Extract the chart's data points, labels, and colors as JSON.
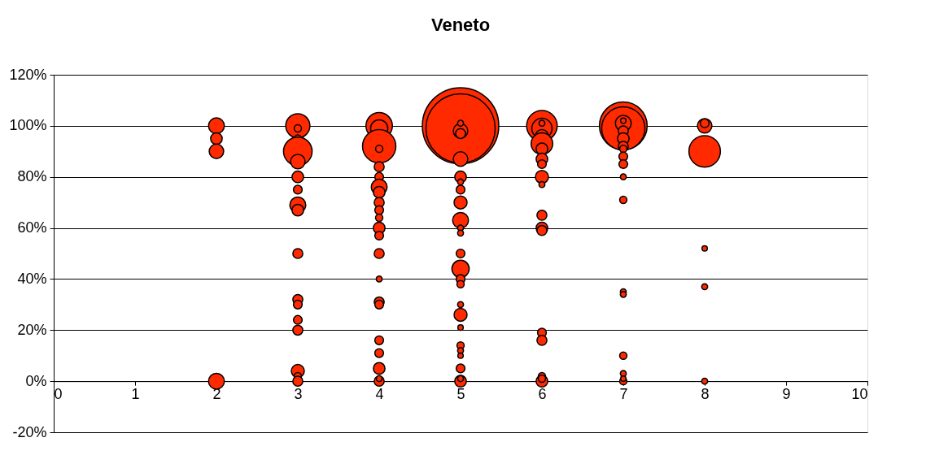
{
  "chart_data": {
    "type": "bubble",
    "title": "Veneto",
    "series": [
      {
        "color": "#ff2a00",
        "x": [
          2,
          2,
          2,
          2,
          3,
          3,
          3,
          3,
          3,
          3,
          3,
          3,
          3,
          3,
          3,
          3,
          3,
          3,
          3,
          3,
          3,
          4,
          4,
          4,
          4,
          4,
          4,
          4,
          4,
          4,
          4,
          4,
          4,
          4,
          4,
          4,
          4,
          4,
          4,
          4,
          4,
          4,
          4,
          5,
          5,
          5,
          5,
          5,
          5,
          5,
          5,
          5,
          5,
          5,
          5,
          5,
          5,
          5,
          5,
          5,
          5,
          5,
          5,
          5,
          5,
          5,
          5,
          5,
          5,
          6,
          6,
          6,
          6,
          6,
          6,
          6,
          6,
          6,
          6,
          6,
          6,
          6,
          6,
          6,
          6,
          6,
          6,
          7,
          7,
          7,
          7,
          7,
          7,
          7,
          7,
          7,
          7,
          7,
          7,
          7,
          7,
          7,
          7,
          7,
          7,
          8,
          8,
          8,
          8,
          8,
          8
        ],
        "values": [
          100,
          95,
          90,
          0,
          100,
          99,
          95,
          90,
          86,
          80,
          75,
          69,
          67,
          50,
          32,
          30,
          24,
          20,
          4,
          2,
          0,
          100,
          99,
          92,
          91,
          84,
          80,
          76,
          74,
          70,
          67,
          64,
          60,
          57,
          50,
          40,
          31,
          30,
          16,
          11,
          5,
          0,
          1,
          100,
          99,
          98,
          97,
          101,
          87,
          80,
          78,
          75,
          70,
          63,
          60,
          58,
          50,
          44,
          40,
          38,
          30,
          26,
          21,
          14,
          12,
          10,
          5,
          0,
          1,
          100,
          99,
          101,
          96,
          93,
          91,
          87,
          85,
          80,
          77,
          65,
          60,
          59,
          19,
          16,
          2,
          0,
          1,
          100,
          99,
          101,
          98,
          102,
          95,
          92,
          91,
          88,
          85,
          80,
          71,
          35,
          34,
          10,
          3,
          0,
          1,
          100,
          101,
          90,
          52,
          37,
          0
        ],
        "sizes": [
          0.043,
          0.023,
          0.036,
          0.043,
          0.1,
          0.009,
          0.009,
          0.14,
          0.036,
          0.023,
          0.013,
          0.043,
          0.023,
          0.017,
          0.017,
          0.013,
          0.013,
          0.017,
          0.029,
          0.009,
          0.017,
          0.12,
          0.051,
          0.19,
          0.009,
          0.017,
          0.013,
          0.043,
          0.023,
          0.017,
          0.013,
          0.009,
          0.023,
          0.013,
          0.017,
          0.006,
          0.017,
          0.013,
          0.013,
          0.013,
          0.023,
          0.017,
          0.006,
          1,
          0.82,
          0.036,
          0.017,
          0.006,
          0.036,
          0.023,
          0.006,
          0.013,
          0.029,
          0.043,
          0.006,
          0.006,
          0.013,
          0.051,
          0.013,
          0.009,
          0.006,
          0.029,
          0.005,
          0.009,
          0.006,
          0.005,
          0.013,
          0.023,
          0.006,
          0.16,
          0.07,
          0.006,
          0.029,
          0.08,
          0.023,
          0.023,
          0.013,
          0.029,
          0.006,
          0.017,
          0.023,
          0.017,
          0.013,
          0.017,
          0.009,
          0.023,
          0.009,
          0.39,
          0.32,
          0.043,
          0.017,
          0.005,
          0.023,
          0.017,
          0.009,
          0.013,
          0.013,
          0.006,
          0.009,
          0.006,
          0.006,
          0.009,
          0.006,
          0.009,
          0.005,
          0.036,
          0.013,
          0.17,
          0.005,
          0.006,
          0.006
        ]
      }
    ],
    "xlim": [
      0,
      10
    ],
    "xticks": [
      0,
      1,
      2,
      3,
      4,
      5,
      6,
      7,
      8,
      9,
      10
    ],
    "ylim": [
      -20,
      120
    ],
    "yticks": [
      {
        "value": -20,
        "label": "-20%"
      },
      {
        "value": 0,
        "label": "0%"
      },
      {
        "value": 20,
        "label": "20%"
      },
      {
        "value": 40,
        "label": "40%"
      },
      {
        "value": 60,
        "label": "60%"
      },
      {
        "value": 80,
        "label": "80%"
      },
      {
        "value": 100,
        "label": "100%"
      },
      {
        "value": 120,
        "label": "120%"
      }
    ],
    "grid": "y"
  }
}
